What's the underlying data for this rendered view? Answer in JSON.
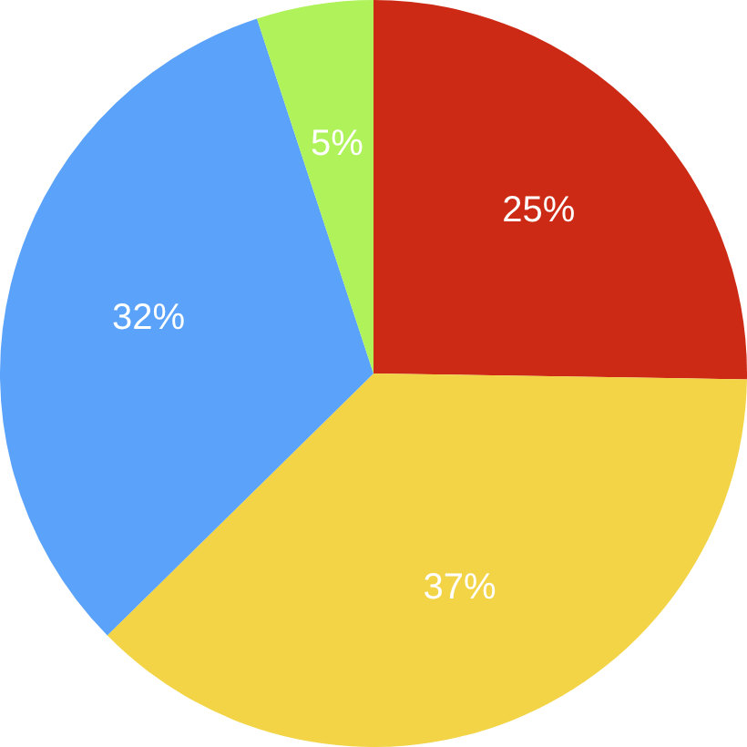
{
  "chart_data": {
    "type": "pie",
    "categories": [
      null,
      null,
      null,
      null
    ],
    "values": [
      25,
      37,
      32,
      5
    ],
    "colors": [
      "#cc2a14",
      "#f2d446",
      "#5aa2fa",
      "#b0f25a"
    ],
    "value_labels": [
      "25%",
      "37%",
      "32%",
      "5%"
    ],
    "legend": false
  }
}
